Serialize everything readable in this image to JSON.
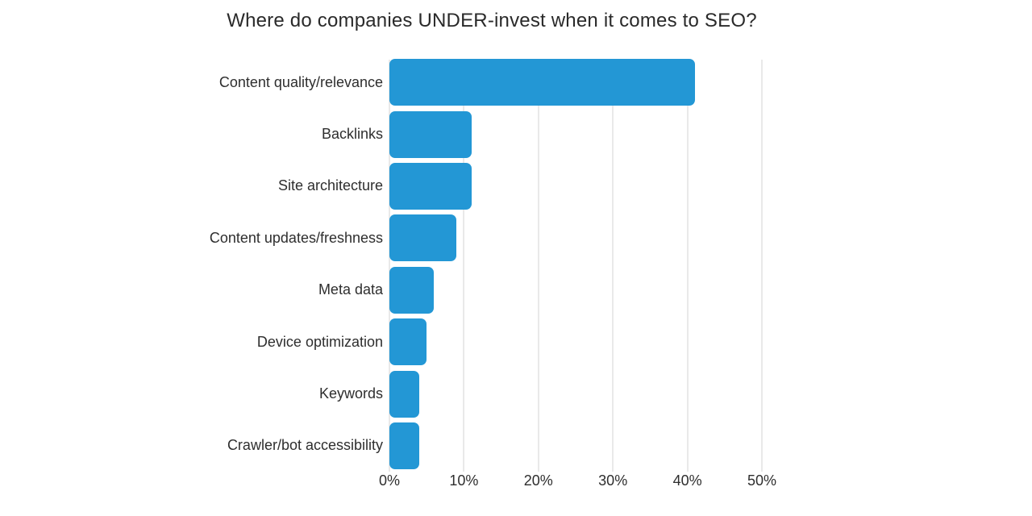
{
  "chart_data": {
    "type": "bar",
    "orientation": "horizontal",
    "title": "Where do companies UNDER-invest when it comes to SEO?",
    "categories": [
      "Content quality/relevance",
      "Backlinks",
      "Site architecture",
      "Content updates/freshness",
      "Meta data",
      "Device optimization",
      "Keywords",
      "Crawler/bot accessibility"
    ],
    "values": [
      41,
      11,
      11,
      9,
      6,
      5,
      4,
      4
    ],
    "value_unit": "%",
    "xlabel": "",
    "ylabel": "",
    "xlim": [
      0,
      50
    ],
    "xticks": [
      {
        "value": 0,
        "label": "0%"
      },
      {
        "value": 10,
        "label": "10%"
      },
      {
        "value": 20,
        "label": "20%"
      },
      {
        "value": 30,
        "label": "30%"
      },
      {
        "value": 40,
        "label": "40%"
      },
      {
        "value": 50,
        "label": "50%"
      }
    ],
    "grid": "vertical",
    "legend": "none",
    "colors": {
      "bar": "#2397d5",
      "gridline": "#e9e9e9",
      "text": "#2e2e2e",
      "background": "#ffffff"
    }
  }
}
